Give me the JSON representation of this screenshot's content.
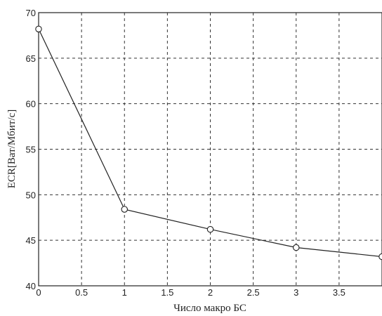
{
  "chart_data": {
    "type": "line",
    "title": "",
    "xlabel": "Число макро БС",
    "ylabel": "ECR[Bат/Мбит/с]",
    "xlim": [
      0,
      4
    ],
    "ylim": [
      40,
      70
    ],
    "xticks": [
      0,
      0.5,
      1,
      1.5,
      2,
      2.5,
      3,
      3.5,
      4
    ],
    "xtick_labels": [
      "0",
      "0.5",
      "1",
      "1.5",
      "2",
      "2.5",
      "3",
      "3.5",
      ""
    ],
    "yticks": [
      40,
      45,
      50,
      55,
      60,
      65,
      70
    ],
    "ytick_labels": [
      "40",
      "45",
      "50",
      "55",
      "60",
      "65",
      "70"
    ],
    "grid": true,
    "legend": "none",
    "series": [
      {
        "x": [
          0,
          1,
          2,
          3,
          4
        ],
        "y": [
          68.2,
          48.4,
          46.2,
          44.2,
          43.2
        ],
        "marker": "circle",
        "color": "#222222"
      }
    ]
  }
}
